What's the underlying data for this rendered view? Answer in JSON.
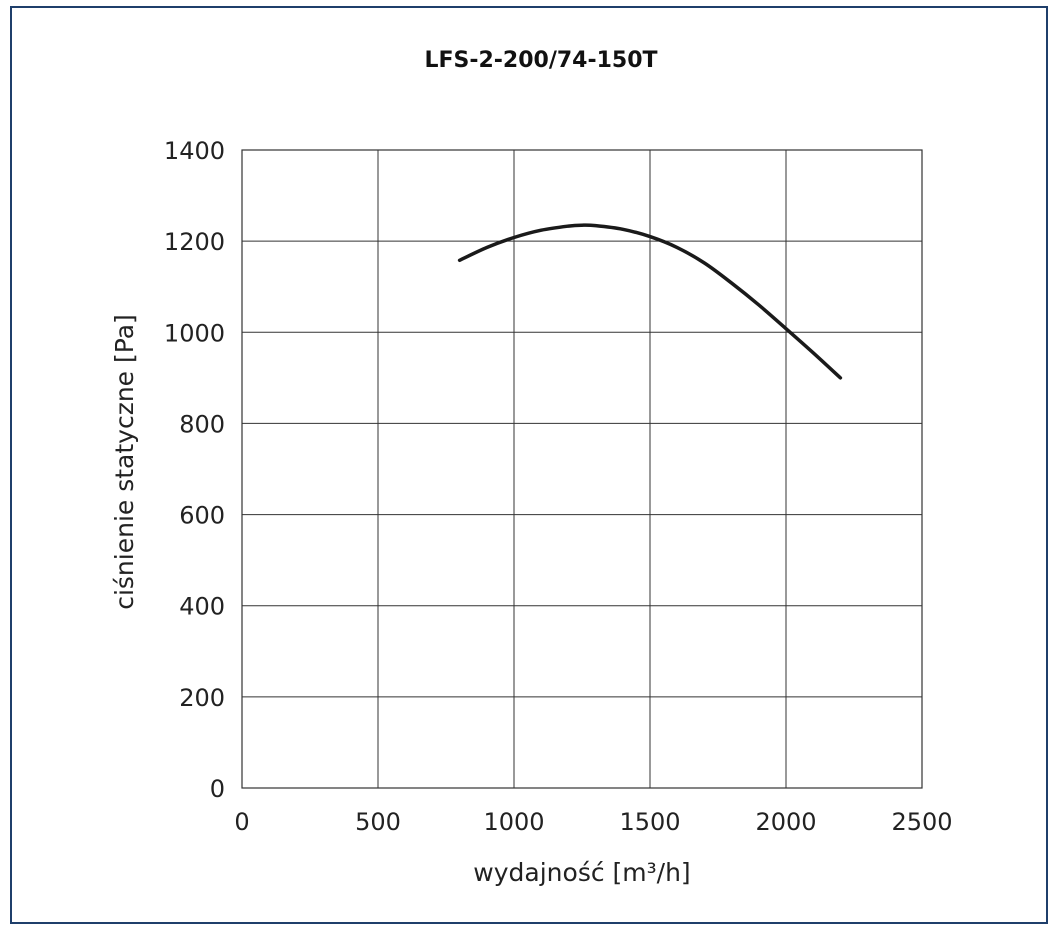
{
  "chart_data": {
    "type": "line",
    "title": "LFS-2-200/74-150T",
    "xlabel": "wydajność [m³/h]",
    "ylabel": "ciśnienie statyczne [Pa]",
    "xlim": [
      0,
      2500
    ],
    "ylim": [
      0,
      1400
    ],
    "xticks": [
      0,
      500,
      1000,
      1500,
      2000,
      2500
    ],
    "yticks": [
      0,
      200,
      400,
      600,
      800,
      1000,
      1200,
      1400
    ],
    "xtick_labels": [
      "0",
      "500",
      "1000",
      "1500",
      "2000",
      "2500"
    ],
    "ytick_labels": [
      "0",
      "200",
      "400",
      "600",
      "800",
      "1000",
      "1200",
      "1400"
    ],
    "grid": true,
    "series": [
      {
        "color": "#1a1a1a",
        "x": [
          800,
          900,
          1000,
          1100,
          1200,
          1250,
          1300,
          1400,
          1500,
          1600,
          1700,
          1800,
          1900,
          2000,
          2100,
          2200
        ],
        "y": [
          1158,
          1186,
          1208,
          1224,
          1233,
          1235,
          1234,
          1226,
          1210,
          1186,
          1152,
          1108,
          1060,
          1008,
          955,
          900
        ]
      }
    ]
  }
}
